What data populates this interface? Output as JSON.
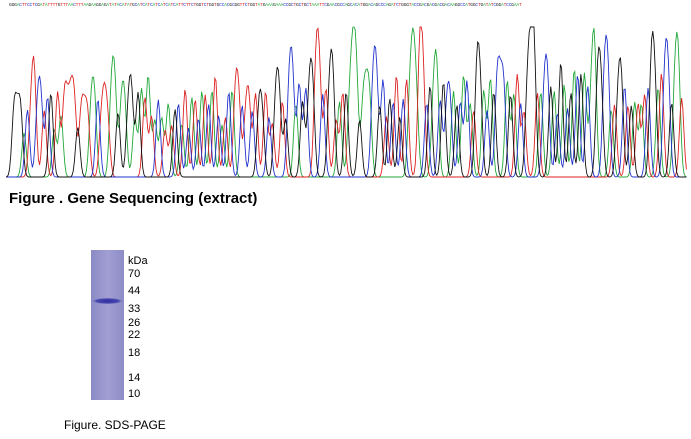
{
  "figure1": {
    "sequence": "GGGACTTCCTCGATATTTTGTTTAACTTTAAGAAGGAGATATACATATGCATCATCATCATCATCATTCTTCTGGTCTGGTGCCACGCGGTTCTGGTATGAAAGAAACCGCTGCTGCTAAATTCGAACGCCAGCACATGGACAGCCCAGATCTGGGTACCGACGACGACGACAAGGCCATGGCTGATATCGGATCCGAAT",
    "caption": "Figure . Gene Sequencing (extract)",
    "trace_colors": {
      "A": "#22a83a",
      "C": "#2233cc",
      "G": "#111111",
      "T": "#dd2222"
    }
  },
  "figure2": {
    "caption": "Figure. SDS-PAGE",
    "ladder_unit": "kDa",
    "ladder_marks": [
      "70",
      "44",
      "33",
      "26",
      "22",
      "18",
      "14",
      "10"
    ],
    "gel_color": "#9a98cc",
    "band_color": "#3b3aa8"
  }
}
